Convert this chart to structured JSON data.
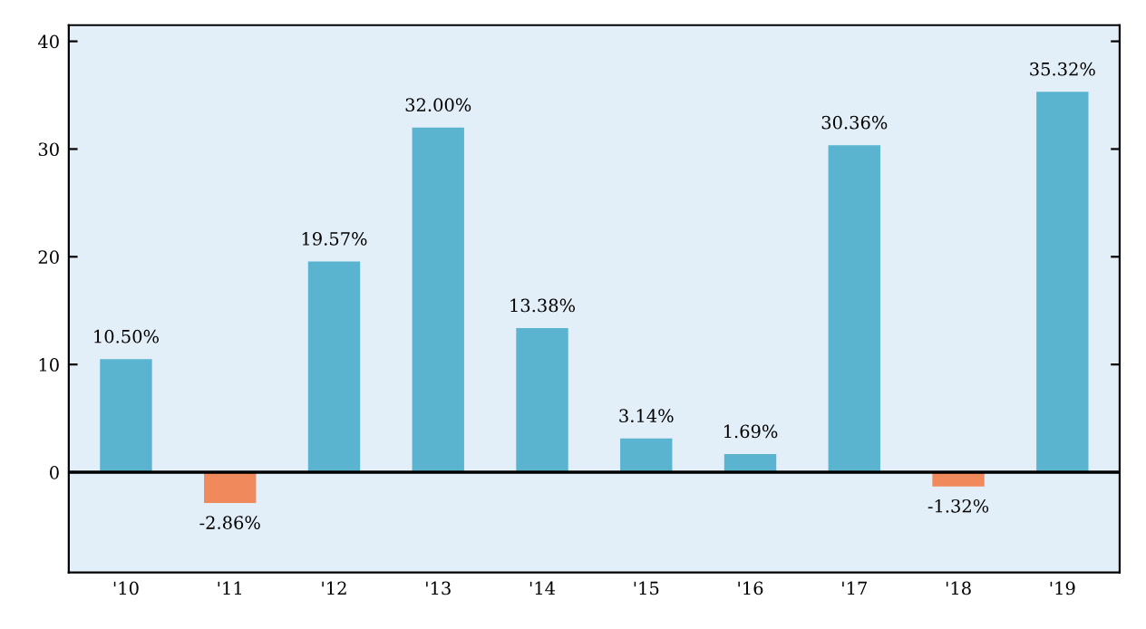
{
  "chart_data": {
    "type": "bar",
    "categories": [
      "'10",
      "'11",
      "'12",
      "'13",
      "'14",
      "'15",
      "'16",
      "'17",
      "'18",
      "'19"
    ],
    "values": [
      10.5,
      -2.86,
      19.57,
      32.0,
      13.38,
      3.14,
      1.69,
      30.36,
      -1.32,
      35.32
    ],
    "colors": [
      "#5ab4d0",
      "#f08a5d",
      "#5ab4d0",
      "#5ab4d0",
      "#5ab4d0",
      "#5ab4d0",
      "#5ab4d0",
      "#5ab4d0",
      "#f08a5d",
      "#5ab4d0"
    ],
    "value_labels": [
      "10.50%",
      "-2.86%",
      "19.57%",
      "32.00%",
      "13.38%",
      "3.14%",
      "1.69%",
      "30.36%",
      "-1.32%",
      "35.32%"
    ],
    "ylim": [
      -9.3,
      41.5
    ],
    "yticks": [
      0,
      10,
      20,
      30,
      40
    ],
    "grid": false,
    "legend": false,
    "ref_lines": [
      {
        "axis": "y",
        "value": 0,
        "color": "#000000",
        "line_style": "solid"
      }
    ]
  }
}
